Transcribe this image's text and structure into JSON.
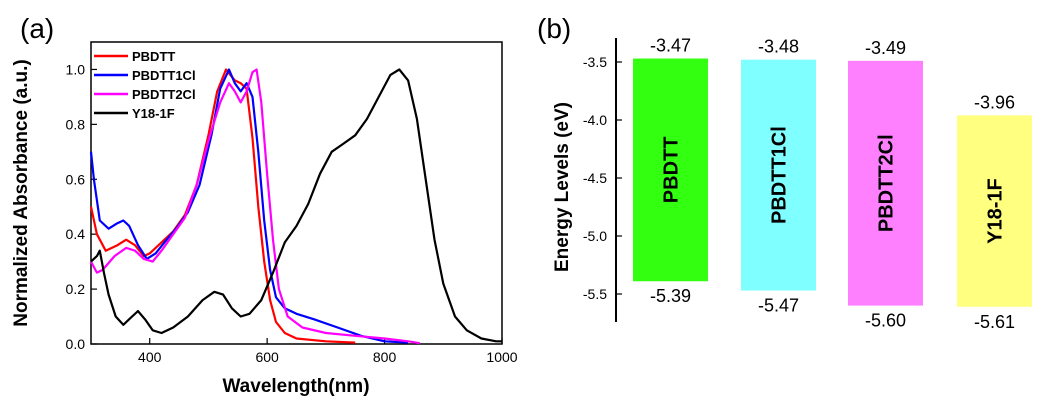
{
  "panels": {
    "a_label": "(a)",
    "b_label": "(b)"
  },
  "chart_data": [
    {
      "type": "line",
      "title": "",
      "xlabel": "Wavelength(nm)",
      "ylabel": "Normalized Absorbance (a.u.)",
      "xlim": [
        300,
        1000
      ],
      "ylim": [
        0.0,
        1.1
      ],
      "x_ticks": [
        {
          "value": 400,
          "label": "400"
        },
        {
          "value": 600,
          "label": "600"
        },
        {
          "value": 800,
          "label": "800"
        },
        {
          "value": 1000,
          "label": "1000"
        }
      ],
      "y_ticks": [
        {
          "value": 0.0,
          "label": "0.0"
        },
        {
          "value": 0.2,
          "label": "0.2"
        },
        {
          "value": 0.4,
          "label": "0.4"
        },
        {
          "value": 0.6,
          "label": "0.6"
        },
        {
          "value": 0.8,
          "label": "0.8"
        },
        {
          "value": 1.0,
          "label": "1.0"
        }
      ],
      "legend_position": "top-left",
      "series": [
        {
          "name": "PBDTT",
          "color": "#ff0000",
          "points": [
            [
              300,
              0.5
            ],
            [
              310,
              0.4
            ],
            [
              325,
              0.34
            ],
            [
              345,
              0.36
            ],
            [
              360,
              0.38
            ],
            [
              375,
              0.36
            ],
            [
              390,
              0.32
            ],
            [
              400,
              0.33
            ],
            [
              420,
              0.37
            ],
            [
              440,
              0.41
            ],
            [
              460,
              0.47
            ],
            [
              480,
              0.58
            ],
            [
              500,
              0.76
            ],
            [
              515,
              0.92
            ],
            [
              530,
              1.0
            ],
            [
              545,
              0.96
            ],
            [
              555,
              0.95
            ],
            [
              565,
              0.93
            ],
            [
              575,
              0.75
            ],
            [
              585,
              0.5
            ],
            [
              595,
              0.3
            ],
            [
              605,
              0.16
            ],
            [
              615,
              0.08
            ],
            [
              630,
              0.04
            ],
            [
              650,
              0.02
            ],
            [
              700,
              0.01
            ],
            [
              750,
              0.005
            ]
          ]
        },
        {
          "name": "PBDTT1Cl",
          "color": "#0000ff",
          "points": [
            [
              300,
              0.7
            ],
            [
              305,
              0.6
            ],
            [
              315,
              0.45
            ],
            [
              330,
              0.42
            ],
            [
              345,
              0.44
            ],
            [
              355,
              0.45
            ],
            [
              365,
              0.43
            ],
            [
              380,
              0.36
            ],
            [
              395,
              0.31
            ],
            [
              410,
              0.33
            ],
            [
              425,
              0.37
            ],
            [
              445,
              0.42
            ],
            [
              465,
              0.48
            ],
            [
              485,
              0.58
            ],
            [
              505,
              0.76
            ],
            [
              520,
              0.93
            ],
            [
              535,
              1.0
            ],
            [
              545,
              0.95
            ],
            [
              555,
              0.92
            ],
            [
              565,
              0.95
            ],
            [
              575,
              0.9
            ],
            [
              585,
              0.7
            ],
            [
              595,
              0.45
            ],
            [
              605,
              0.27
            ],
            [
              615,
              0.17
            ],
            [
              630,
              0.13
            ],
            [
              650,
              0.11
            ],
            [
              680,
              0.09
            ],
            [
              720,
              0.06
            ],
            [
              760,
              0.03
            ],
            [
              800,
              0.01
            ],
            [
              840,
              0.005
            ]
          ]
        },
        {
          "name": "PBDTT2Cl",
          "color": "#ff00ff",
          "points": [
            [
              300,
              0.3
            ],
            [
              310,
              0.26
            ],
            [
              320,
              0.27
            ],
            [
              340,
              0.32
            ],
            [
              360,
              0.35
            ],
            [
              375,
              0.34
            ],
            [
              390,
              0.31
            ],
            [
              405,
              0.3
            ],
            [
              420,
              0.34
            ],
            [
              440,
              0.4
            ],
            [
              460,
              0.46
            ],
            [
              480,
              0.58
            ],
            [
              500,
              0.74
            ],
            [
              520,
              0.88
            ],
            [
              535,
              0.95
            ],
            [
              545,
              0.92
            ],
            [
              555,
              0.88
            ],
            [
              565,
              0.92
            ],
            [
              575,
              0.99
            ],
            [
              582,
              1.0
            ],
            [
              590,
              0.88
            ],
            [
              600,
              0.62
            ],
            [
              610,
              0.38
            ],
            [
              620,
              0.2
            ],
            [
              635,
              0.1
            ],
            [
              660,
              0.06
            ],
            [
              700,
              0.04
            ],
            [
              750,
              0.03
            ],
            [
              800,
              0.02
            ],
            [
              840,
              0.01
            ],
            [
              860,
              0.003
            ]
          ]
        },
        {
          "name": "Y18-1F",
          "color": "#000000",
          "points": [
            [
              300,
              0.3
            ],
            [
              310,
              0.32
            ],
            [
              315,
              0.34
            ],
            [
              322,
              0.26
            ],
            [
              330,
              0.18
            ],
            [
              342,
              0.1
            ],
            [
              355,
              0.07
            ],
            [
              370,
              0.1
            ],
            [
              380,
              0.12
            ],
            [
              392,
              0.09
            ],
            [
              405,
              0.05
            ],
            [
              420,
              0.04
            ],
            [
              440,
              0.06
            ],
            [
              465,
              0.1
            ],
            [
              490,
              0.16
            ],
            [
              510,
              0.19
            ],
            [
              525,
              0.18
            ],
            [
              540,
              0.13
            ],
            [
              555,
              0.1
            ],
            [
              570,
              0.11
            ],
            [
              590,
              0.16
            ],
            [
              610,
              0.26
            ],
            [
              630,
              0.37
            ],
            [
              650,
              0.43
            ],
            [
              670,
              0.51
            ],
            [
              690,
              0.62
            ],
            [
              710,
              0.7
            ],
            [
              730,
              0.73
            ],
            [
              750,
              0.76
            ],
            [
              770,
              0.82
            ],
            [
              790,
              0.9
            ],
            [
              810,
              0.98
            ],
            [
              825,
              1.0
            ],
            [
              840,
              0.96
            ],
            [
              855,
              0.82
            ],
            [
              870,
              0.6
            ],
            [
              885,
              0.38
            ],
            [
              900,
              0.22
            ],
            [
              920,
              0.1
            ],
            [
              940,
              0.05
            ],
            [
              965,
              0.02
            ],
            [
              990,
              0.01
            ],
            [
              1000,
              0.01
            ]
          ]
        }
      ]
    },
    {
      "type": "bar",
      "title": "",
      "xlabel": "",
      "ylabel": "Energy Levels (eV)",
      "ylim": [
        -5.75,
        -3.25
      ],
      "y_ticks": [
        {
          "value": -3.5,
          "label": "-3.5"
        },
        {
          "value": -4.0,
          "label": "-4.0"
        },
        {
          "value": -4.5,
          "label": "-4.5"
        },
        {
          "value": -5.0,
          "label": "-5.0"
        },
        {
          "value": -5.5,
          "label": "-5.5"
        }
      ],
      "bars": [
        {
          "name": "PBDTT",
          "lumo": -3.47,
          "homo": -5.39,
          "lumo_label": "-3.47",
          "homo_label": "-5.39",
          "color": "#33ff11"
        },
        {
          "name": "PBDTT1Cl",
          "lumo": -3.48,
          "homo": -5.47,
          "lumo_label": "-3.48",
          "homo_label": "-5.47",
          "color": "#7fffff"
        },
        {
          "name": "PBDTT2Cl",
          "lumo": -3.49,
          "homo": -5.6,
          "lumo_label": "-3.49",
          "homo_label": "-5.60",
          "color": "#ff80ff"
        },
        {
          "name": "Y18-1F",
          "lumo": -3.96,
          "homo": -5.61,
          "lumo_label": "-3.96",
          "homo_label": "-5.61",
          "color": "#ffff80"
        }
      ]
    }
  ]
}
